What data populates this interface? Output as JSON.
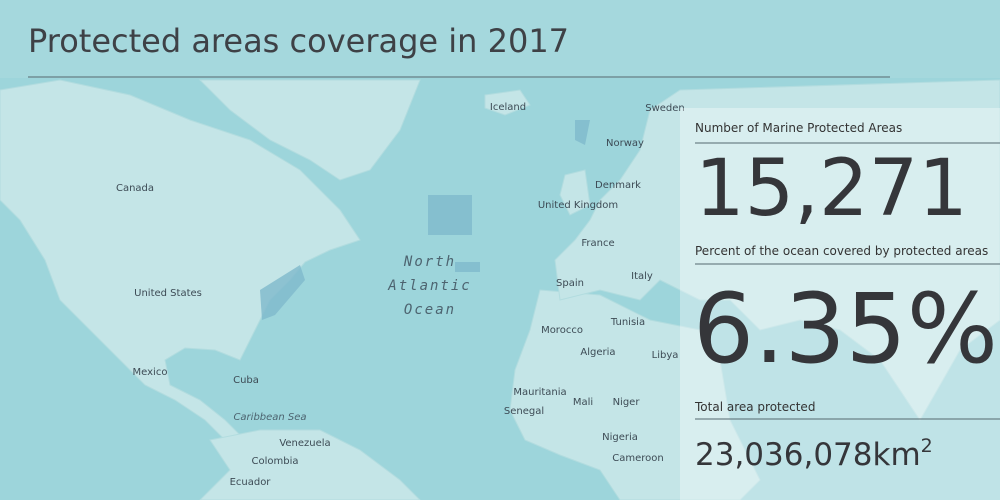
{
  "header": {
    "title": "Protected areas coverage in 2017"
  },
  "map": {
    "labels": [
      "Iceland",
      "Sweden",
      "Norway",
      "Canada",
      "United Kingdom",
      "Denmark",
      "France",
      "Spain",
      "Italy",
      "Tunisia",
      "Morocco",
      "Algeria",
      "Libya",
      "Mauritania",
      "Mali",
      "Niger",
      "Senegal",
      "Nigeria",
      "Cameroon",
      "United States",
      "Mexico",
      "Cuba",
      "Venezuela",
      "Colombia",
      "Ecuador",
      "Caribbean Sea"
    ],
    "ocean": [
      "North",
      "Atlantic",
      "Ocean"
    ]
  },
  "stats": [
    {
      "label": "Number of Marine Protected Areas",
      "value": "15,271"
    },
    {
      "label": "Percent of the ocean covered by protected areas",
      "value": "6.35%"
    },
    {
      "label": "Total area protected",
      "value": "23,036,078km",
      "superscript": "2"
    }
  ]
}
